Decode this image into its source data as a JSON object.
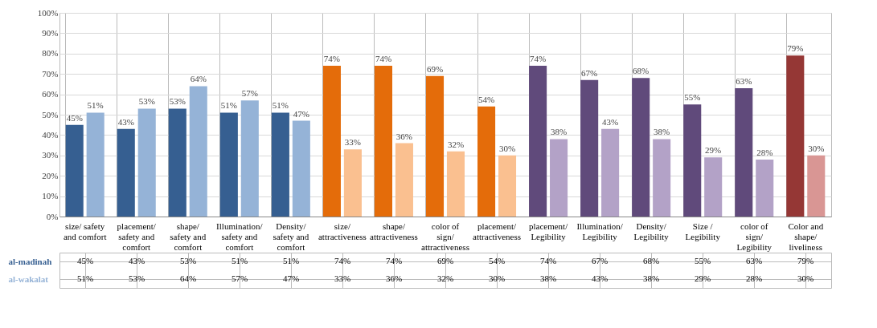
{
  "chart_data": {
    "type": "bar",
    "categories": [
      "size/ safety and comfort",
      "placement/ safety and comfort",
      "shape/ safety and comfort",
      "Illumination/ safety and comfort",
      "Density/ safety and comfort",
      "size/ attractiveness",
      "shape/ attractiveness",
      "color of sign/ attractiveness",
      "placement/ attractiveness",
      "placement/ Legibility",
      "Illumination/ Legibility",
      "Density/ Legibility",
      "Size / Legibility",
      "color of sign/ Legibility",
      "Color and shape/ liveliness"
    ],
    "series": [
      {
        "name": "al-madinah",
        "colors": [
          "#365f91",
          "#365f91",
          "#365f91",
          "#365f91",
          "#365f91",
          "#e46c0a",
          "#e46c0a",
          "#e46c0a",
          "#e46c0a",
          "#604a7b",
          "#604a7b",
          "#604a7b",
          "#604a7b",
          "#604a7b",
          "#953735"
        ],
        "values": [
          45,
          43,
          53,
          51,
          51,
          74,
          74,
          69,
          54,
          74,
          67,
          68,
          55,
          63,
          79
        ],
        "value_labels": [
          "45%",
          "43%",
          "53%",
          "51%",
          "51%",
          "74%",
          "74%",
          "69%",
          "54%",
          "74%",
          "67%",
          "68%",
          "55%",
          "63%",
          "79%"
        ]
      },
      {
        "name": "al-wakalat",
        "colors": [
          "#95b3d7",
          "#95b3d7",
          "#95b3d7",
          "#95b3d7",
          "#95b3d7",
          "#fac090",
          "#fac090",
          "#fac090",
          "#fac090",
          "#b3a2c7",
          "#b3a2c7",
          "#b3a2c7",
          "#b3a2c7",
          "#b3a2c7",
          "#d99694"
        ],
        "values": [
          51,
          53,
          64,
          57,
          47,
          33,
          36,
          32,
          30,
          38,
          43,
          38,
          29,
          28,
          30
        ],
        "value_labels": [
          "51%",
          "53%",
          "64%",
          "57%",
          "47%",
          "33%",
          "36%",
          "32%",
          "30%",
          "38%",
          "43%",
          "38%",
          "29%",
          "28%",
          "30%"
        ]
      }
    ],
    "ylim": [
      0,
      100
    ],
    "yticks": [
      {
        "value": 0,
        "label": "0%"
      },
      {
        "value": 10,
        "label": "10%"
      },
      {
        "value": 20,
        "label": "20%"
      },
      {
        "value": 30,
        "label": "30%"
      },
      {
        "value": 40,
        "label": "40%"
      },
      {
        "value": 50,
        "label": "50%"
      },
      {
        "value": 60,
        "label": "60%"
      },
      {
        "value": 70,
        "label": "70%"
      },
      {
        "value": 80,
        "label": "80%"
      },
      {
        "value": 90,
        "label": "90%"
      },
      {
        "value": 100,
        "label": "100%"
      }
    ],
    "grid": "y"
  }
}
